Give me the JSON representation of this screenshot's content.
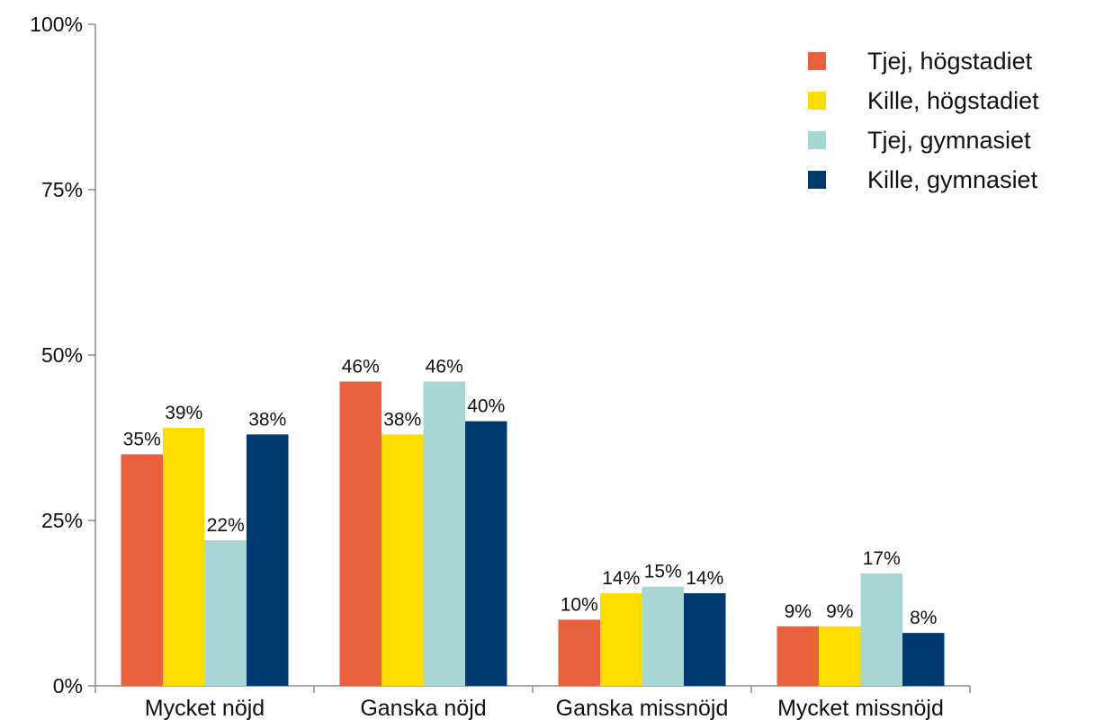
{
  "chart_data": {
    "type": "bar",
    "categories": [
      "Mycket nöjd",
      "Ganska nöjd",
      "Ganska missnöjd",
      "Mycket missnöjd"
    ],
    "series": [
      {
        "name": "Tjej, högstadiet",
        "color": "#E8603C",
        "values": [
          35,
          46,
          10,
          9
        ],
        "labels": [
          "35%",
          "46%",
          "10%",
          "9%"
        ]
      },
      {
        "name": "Kille, högstadiet",
        "color": "#FFDC00",
        "values": [
          39,
          38,
          14,
          9
        ],
        "labels": [
          "39%",
          "38%",
          "14%",
          "9%"
        ]
      },
      {
        "name": "Tjej, gymnasiet",
        "color": "#A7D7D4",
        "values": [
          22,
          46,
          15,
          17
        ],
        "labels": [
          "22%",
          "46%",
          "15%",
          "17%"
        ]
      },
      {
        "name": "Kille, gymnasiet",
        "color": "#003A70",
        "values": [
          38,
          40,
          14,
          8
        ],
        "labels": [
          "38%",
          "40%",
          "14%",
          "8%"
        ]
      }
    ],
    "yticks": [
      0,
      25,
      50,
      75,
      100
    ],
    "ytick_labels": [
      "0%",
      "25%",
      "50%",
      "75%",
      "100%"
    ],
    "ylim": [
      0,
      100
    ],
    "legend_position": "top-right",
    "grid": false,
    "title": "",
    "xlabel": "",
    "ylabel": ""
  }
}
